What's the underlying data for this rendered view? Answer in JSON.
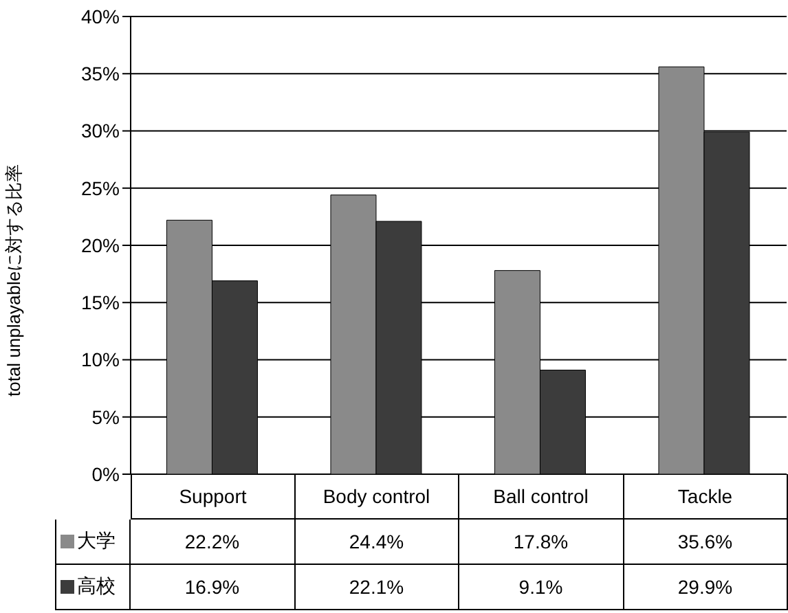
{
  "chart_data": {
    "type": "bar",
    "ylabel": "total unplayableに対する比率",
    "categories": [
      "Support",
      "Body control",
      "Ball control",
      "Tackle"
    ],
    "series": [
      {
        "name": "大学",
        "color": "#8a8a8a",
        "values": [
          22.2,
          24.4,
          17.8,
          35.6
        ],
        "value_labels": [
          "22.2%",
          "24.4%",
          "17.8%",
          "35.6%"
        ]
      },
      {
        "name": "高校",
        "color": "#3c3c3c",
        "values": [
          16.9,
          22.1,
          9.1,
          29.9
        ],
        "value_labels": [
          "16.9%",
          "22.1%",
          "9.1%",
          "29.9%"
        ]
      }
    ],
    "ylim": [
      0,
      40
    ],
    "yticks": [
      {
        "value": 0,
        "label": "0%"
      },
      {
        "value": 5,
        "label": "5%"
      },
      {
        "value": 10,
        "label": "10%"
      },
      {
        "value": 15,
        "label": "15%"
      },
      {
        "value": 20,
        "label": "20%"
      },
      {
        "value": 25,
        "label": "25%"
      },
      {
        "value": 30,
        "label": "30%"
      },
      {
        "value": 35,
        "label": "35%"
      },
      {
        "value": 40,
        "label": "40%"
      }
    ],
    "grid": "y",
    "legend": "bottom"
  }
}
